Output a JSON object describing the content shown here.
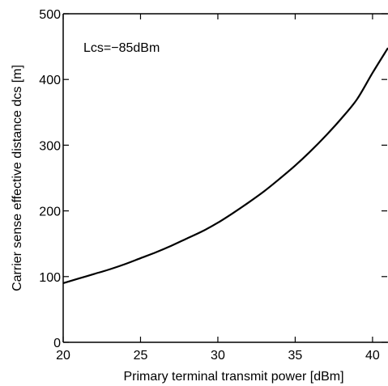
{
  "chart_data": {
    "type": "line",
    "title": "",
    "xlabel": "Primary terminal transmit power [dBm]",
    "ylabel": "Carrier sense effective distance dcs [m]",
    "xlim": [
      20,
      41
    ],
    "ylim": [
      0,
      500
    ],
    "xticks": [
      20,
      25,
      30,
      35,
      40
    ],
    "yticks": [
      0,
      100,
      200,
      300,
      400,
      500
    ],
    "grid": false,
    "legend": "none",
    "annotation": "Lcs=−85dBm",
    "series": [
      {
        "color": "#000000",
        "x": [
          20,
          21,
          22,
          23,
          24,
          25,
          26,
          27,
          28,
          29,
          30,
          31,
          32,
          33,
          34,
          35,
          36,
          37,
          38,
          39,
          40,
          41
        ],
        "y": [
          90,
          97,
          104,
          111,
          119,
          128,
          137,
          147,
          158,
          169,
          182,
          197,
          213,
          230,
          249,
          269,
          291,
          315,
          341,
          370,
          410,
          448
        ]
      }
    ]
  }
}
